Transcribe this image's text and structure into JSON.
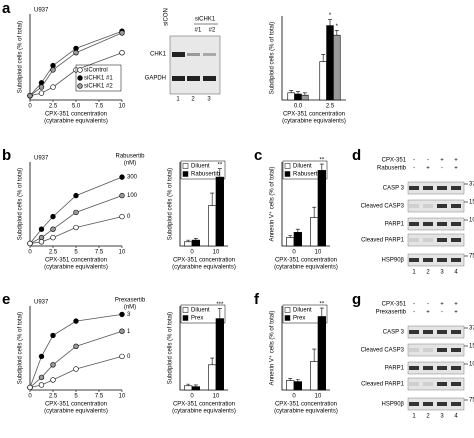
{
  "panel_labels": [
    "a",
    "b",
    "c",
    "d",
    "e",
    "f",
    "g"
  ],
  "chart_data": [
    {
      "type": "line",
      "title": "U937",
      "y_label": "Subdiploid cells (% of total)",
      "x_label": [
        "CPX-351 concentration",
        "(cytarabine equivalents)"
      ],
      "x": [
        0,
        1.25,
        2.5,
        5,
        10
      ],
      "xlim": [
        0,
        10
      ],
      "xticks": [
        0,
        2.5,
        {
          "value": 5,
          "label": "5.0"
        },
        7.5,
        10
      ],
      "ylim": [
        0,
        100
      ],
      "legend": "lower-right",
      "series": [
        {
          "name": "siControl",
          "color": "#ffffff",
          "values": [
            5,
            8,
            15,
            35,
            55
          ]
        },
        {
          "name": "siCHK1 #1",
          "color": "#000000",
          "values": [
            5,
            20,
            40,
            60,
            80
          ]
        },
        {
          "name": "siCHK1 #2",
          "color": "#999999",
          "values": [
            5,
            15,
            35,
            55,
            78
          ]
        }
      ]
    },
    {
      "type": "bar",
      "y_label": "Subdiploid cells (% of total)",
      "x_label": [
        "CPX-351 concentration",
        "(cytarabine equivalents)"
      ],
      "categories": [
        "0.0",
        "2.5"
      ],
      "ylim": [
        0,
        70
      ],
      "series": [
        {
          "name": "siControl",
          "color": "#ffffff",
          "values": [
            6,
            32
          ],
          "errors": [
            2,
            6
          ],
          "significance": [
            null,
            null
          ]
        },
        {
          "name": "siCHK1 #1",
          "color": "#000000",
          "values": [
            5,
            62
          ],
          "errors": [
            2,
            5
          ],
          "significance": [
            null,
            "*"
          ]
        },
        {
          "name": "siCHK1 #2",
          "color": "#999999",
          "values": [
            4,
            54
          ],
          "errors": [
            2,
            4
          ],
          "significance": [
            null,
            "*"
          ]
        }
      ]
    },
    {
      "type": "line",
      "title": "U937",
      "y_label": "Subdiploid cells (% of total)",
      "x_label": [
        "CPX-351 concentration",
        "(cytarabine equivalents)"
      ],
      "x": [
        0,
        1.25,
        2.5,
        5,
        10
      ],
      "xlim": [
        0,
        10
      ],
      "xticks": [
        0,
        2.5,
        5,
        7.5,
        10
      ],
      "ylim": [
        0,
        100
      ],
      "legend": "line-end",
      "legend_title": [
        "Rabusertib",
        "(nM)"
      ],
      "series": [
        {
          "name": "300",
          "color": "#000000",
          "values": [
            3,
            20,
            35,
            60,
            82
          ]
        },
        {
          "name": "100",
          "color": "#999999",
          "values": [
            3,
            10,
            20,
            40,
            60
          ]
        },
        {
          "name": "0",
          "color": "#ffffff",
          "values": [
            3,
            5,
            10,
            22,
            35
          ]
        }
      ]
    },
    {
      "type": "bar",
      "y_label": "Subdiploid cells (% of total)",
      "x_label": [
        "CPX-351 concentration",
        "(cytarabine equivalents)"
      ],
      "categories": [
        "0",
        "10"
      ],
      "ylim": [
        0,
        100
      ],
      "legend": "upper-left",
      "series": [
        {
          "name": "Diluent",
          "color": "#ffffff",
          "values": [
            5,
            48
          ],
          "errors": [
            2,
            15
          ],
          "significance": [
            null,
            null
          ]
        },
        {
          "name": "Rabusertib",
          "color": "#000000",
          "values": [
            7,
            82
          ],
          "errors": [
            2,
            10
          ],
          "significance": [
            null,
            "**"
          ]
        }
      ]
    },
    {
      "type": "bar",
      "y_label": "Annexin V⁺ cells (% of total)",
      "x_label": [
        "CPX-351 concentration",
        "(cytarabine equivalents)"
      ],
      "categories": [
        "0",
        "10"
      ],
      "ylim": [
        0,
        80
      ],
      "legend": "upper-left",
      "series": [
        {
          "name": "Diluent",
          "color": "#ffffff",
          "values": [
            8,
            27
          ],
          "errors": [
            2,
            10
          ],
          "significance": [
            null,
            null
          ]
        },
        {
          "name": "Rabusertib",
          "color": "#000000",
          "values": [
            13,
            72
          ],
          "errors": [
            3,
            6
          ],
          "significance": [
            null,
            "**"
          ]
        }
      ]
    },
    {
      "type": "line",
      "title": "U937",
      "y_label": "Subdiploid cells (% of total)",
      "x_label": [
        "CPX-351 concentration",
        "(cytarabine equivalents)"
      ],
      "x": [
        0,
        1.25,
        2.5,
        5,
        10
      ],
      "xlim": [
        0,
        10
      ],
      "xticks": [
        0,
        2.5,
        5,
        7.5,
        10
      ],
      "ylim": [
        0,
        100
      ],
      "legend": "line-end",
      "legend_title": [
        "Prexasertib",
        "(nM)"
      ],
      "series": [
        {
          "name": "3",
          "color": "#000000",
          "values": [
            3,
            40,
            65,
            82,
            90
          ]
        },
        {
          "name": "1",
          "color": "#999999",
          "values": [
            3,
            15,
            30,
            52,
            70
          ]
        },
        {
          "name": "0",
          "color": "#ffffff",
          "values": [
            3,
            6,
            12,
            25,
            40
          ]
        }
      ]
    },
    {
      "type": "bar",
      "y_label": "Subdiploid cells (% of total)",
      "x_label": [
        "CPX-351 concentration",
        "(cytarabine equivalents)"
      ],
      "categories": [
        "0",
        "10"
      ],
      "ylim": [
        0,
        100
      ],
      "legend": "upper-left",
      "series": [
        {
          "name": "Diluent",
          "color": "#ffffff",
          "values": [
            5,
            30
          ],
          "errors": [
            2,
            8
          ],
          "significance": [
            null,
            null
          ]
        },
        {
          "name": "Prex",
          "color": "#000000",
          "values": [
            4,
            85
          ],
          "errors": [
            2,
            12
          ],
          "significance": [
            null,
            "***"
          ]
        }
      ]
    },
    {
      "type": "bar",
      "y_label": "Annexin V⁺ cells (% of total)",
      "x_label": [
        "CPX-351 concentration",
        "(cytarabine equivalents)"
      ],
      "categories": [
        "0",
        "10"
      ],
      "ylim": [
        0,
        80
      ],
      "legend": "upper-left",
      "series": [
        {
          "name": "Diluent",
          "color": "#ffffff",
          "values": [
            9,
            27
          ],
          "errors": [
            2,
            12
          ],
          "significance": [
            null,
            null
          ]
        },
        {
          "name": "Prex",
          "color": "#000000",
          "values": [
            8,
            70
          ],
          "errors": [
            2,
            8
          ],
          "significance": [
            null,
            "**"
          ]
        }
      ]
    }
  ],
  "blots": [
    {
      "top_labels": [
        "siCON",
        "siCHK1"
      ],
      "sub_labels": [
        "#1",
        "#2"
      ],
      "rows": [
        "CHK1",
        "GAPDH"
      ],
      "lanes": [
        "1",
        "2",
        "3"
      ]
    },
    {
      "treatments": [
        {
          "name": "CPX-351",
          "signs": [
            "-",
            "-",
            "+",
            "+"
          ]
        },
        {
          "name": "Rabusertib",
          "signs": [
            "-",
            "+",
            "-",
            "+"
          ]
        }
      ],
      "rows": [
        "CASP 3",
        "Cleaved CASP3",
        "PARP1",
        "Cleaved PARP1",
        "HSP90β"
      ],
      "markers": [
        "37",
        "15",
        "100",
        "75"
      ],
      "lanes": [
        "1",
        "2",
        "3",
        "4"
      ]
    },
    {
      "treatments": [
        {
          "name": "CPX-351",
          "signs": [
            "-",
            "-",
            "+",
            "+"
          ]
        },
        {
          "name": "Prexasertib",
          "signs": [
            "-",
            "+",
            "-",
            "+"
          ]
        }
      ],
      "rows": [
        "CASP 3",
        "Cleaved CASP3",
        "PARP1",
        "Cleaved PARP1",
        "HSP90β"
      ],
      "markers": [
        "37",
        "15",
        "100",
        "75"
      ],
      "lanes": [
        "1",
        "2",
        "3",
        "4"
      ]
    }
  ]
}
